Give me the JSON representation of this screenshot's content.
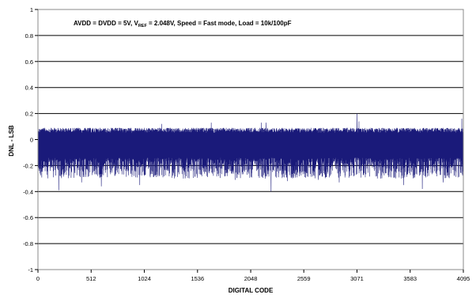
{
  "chart_data": {
    "type": "line",
    "annotation": {
      "prefix": "AVDD = DVDD = 5V, V",
      "subscript": "REF",
      "suffix": " = 2.048V, Speed = Fast mode, Load = 10k/100pF"
    },
    "xlabel": "DIGITAL CODE",
    "ylabel": "DNL - LSB",
    "xlim": [
      0,
      4095
    ],
    "ylim": [
      -1,
      1
    ],
    "x_ticks": [
      0,
      512,
      1024,
      1536,
      2048,
      2559,
      3071,
      3583,
      4095
    ],
    "x_tick_labels": [
      "0",
      "512",
      "1024",
      "1536",
      "2048",
      "2559",
      "3071",
      "3583",
      "4095"
    ],
    "y_ticks": [
      1,
      0.8,
      0.6,
      0.4,
      0.2,
      0,
      -0.2,
      -0.4,
      -0.6,
      -0.8,
      -1
    ],
    "y_tick_labels": [
      "1",
      "0.8",
      "0.6",
      "0.4",
      "0.2",
      "0",
      "-0.2",
      "-0.4",
      "-0.6",
      "-0.8",
      "-1"
    ],
    "grid": "horizontal",
    "line_color": "#1a1a7a",
    "series": [
      {
        "description_of_trace": "dense noise per code",
        "typical_upper": 0.09,
        "typical_lower": -0.22,
        "x": [
          0,
          200,
          420,
          610,
          980,
          1192,
          1400,
          1668,
          1900,
          2150,
          2195,
          2244,
          2400,
          2700,
          2900,
          3071,
          3090,
          3300,
          3520,
          3700,
          3900,
          4080,
          4095
        ],
        "y": [
          0.08,
          -0.39,
          -0.33,
          -0.36,
          -0.35,
          0.12,
          -0.3,
          0.13,
          -0.31,
          0.13,
          0.13,
          -0.4,
          -0.32,
          -0.31,
          -0.33,
          0.2,
          0.14,
          -0.3,
          -0.35,
          -0.38,
          -0.33,
          0.16,
          -0.25
        ]
      }
    ]
  }
}
